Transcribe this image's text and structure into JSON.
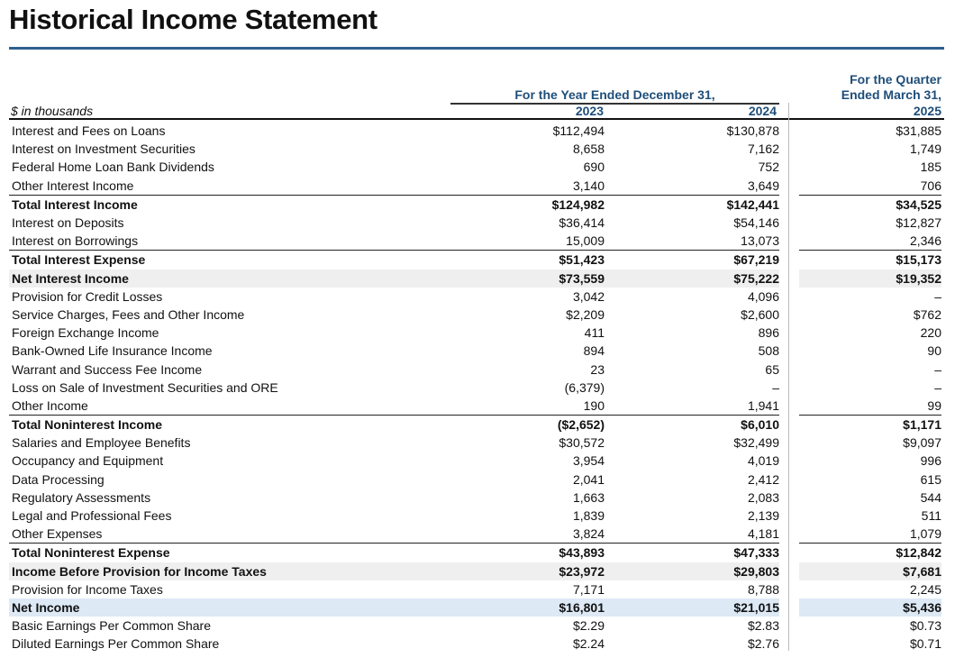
{
  "title": "Historical Income Statement",
  "header": {
    "units": "$ in thousands",
    "year_group": "For the Year Ended December 31,",
    "col_2023": "2023",
    "col_2024": "2024",
    "quarter_line1": "For the Quarter",
    "quarter_line2": "Ended March 31,",
    "col_2025": "2025"
  },
  "rows": [
    {
      "label": "Interest and Fees on Loans",
      "y2023": "$112,494",
      "y2024": "$130,878",
      "q2025": "$31,885"
    },
    {
      "label": "Interest on Investment Securities",
      "y2023": "8,658",
      "y2024": "7,162",
      "q2025": "1,749"
    },
    {
      "label": "Federal Home Loan Bank Dividends",
      "y2023": "690",
      "y2024": "752",
      "q2025": "185"
    },
    {
      "label": "Other Interest Income",
      "y2023": "3,140",
      "y2024": "3,649",
      "q2025": "706"
    },
    {
      "label": "Total Interest Income",
      "y2023": "$124,982",
      "y2024": "$142,441",
      "q2025": "$34,525"
    },
    {
      "label": "Interest on Deposits",
      "y2023": "$36,414",
      "y2024": "$54,146",
      "q2025": "$12,827"
    },
    {
      "label": "Interest on Borrowings",
      "y2023": "15,009",
      "y2024": "13,073",
      "q2025": "2,346"
    },
    {
      "label": "Total Interest Expense",
      "y2023": "$51,423",
      "y2024": "$67,219",
      "q2025": "$15,173"
    },
    {
      "label": "Net Interest Income",
      "y2023": "$73,559",
      "y2024": "$75,222",
      "q2025": "$19,352"
    },
    {
      "label": "Provision for Credit Losses",
      "y2023": "3,042",
      "y2024": "4,096",
      "q2025": "–"
    },
    {
      "label": "Service Charges, Fees and Other Income",
      "y2023": "$2,209",
      "y2024": "$2,600",
      "q2025": "$762"
    },
    {
      "label": "Foreign Exchange Income",
      "y2023": "411",
      "y2024": "896",
      "q2025": "220"
    },
    {
      "label": "Bank-Owned Life Insurance Income",
      "y2023": "894",
      "y2024": "508",
      "q2025": "90"
    },
    {
      "label": "Warrant and Success Fee Income",
      "y2023": "23",
      "y2024": "65",
      "q2025": "–"
    },
    {
      "label": "Loss on Sale of Investment Securities and ORE",
      "y2023": "(6,379)",
      "y2024": "–",
      "q2025": "–"
    },
    {
      "label": "Other Income",
      "y2023": "190",
      "y2024": "1,941",
      "q2025": "99"
    },
    {
      "label": "Total Noninterest Income",
      "y2023": "($2,652)",
      "y2024": "$6,010",
      "q2025": "$1,171"
    },
    {
      "label": "Salaries and Employee Benefits",
      "y2023": "$30,572",
      "y2024": "$32,499",
      "q2025": "$9,097"
    },
    {
      "label": "Occupancy and Equipment",
      "y2023": "3,954",
      "y2024": "4,019",
      "q2025": "996"
    },
    {
      "label": "Data Processing",
      "y2023": "2,041",
      "y2024": "2,412",
      "q2025": "615"
    },
    {
      "label": "Regulatory Assessments",
      "y2023": "1,663",
      "y2024": "2,083",
      "q2025": "544"
    },
    {
      "label": "Legal and Professional Fees",
      "y2023": "1,839",
      "y2024": "2,139",
      "q2025": "511"
    },
    {
      "label": "Other Expenses",
      "y2023": "3,824",
      "y2024": "4,181",
      "q2025": "1,079"
    },
    {
      "label": "Total Noninterest Expense",
      "y2023": "$43,893",
      "y2024": "$47,333",
      "q2025": "$12,842"
    },
    {
      "label": "Income Before Provision for Income Taxes",
      "y2023": "$23,972",
      "y2024": "$29,803",
      "q2025": "$7,681"
    },
    {
      "label": "Provision for Income Taxes",
      "y2023": "7,171",
      "y2024": "8,788",
      "q2025": "2,245"
    },
    {
      "label": "Net Income",
      "y2023": "$16,801",
      "y2024": "$21,015",
      "q2025": "$5,436"
    },
    {
      "label": "Basic Earnings Per Common Share",
      "y2023": "$2.29",
      "y2024": "$2.83",
      "q2025": "$0.73"
    },
    {
      "label": "Diluted Earnings Per Common Share",
      "y2023": "$2.24",
      "y2024": "$2.76",
      "q2025": "$0.71"
    }
  ],
  "styles": {
    "header_color": "#1f4e79",
    "net_income_fill": "#dde9f5",
    "subtotal_fill": "#efefef"
  }
}
